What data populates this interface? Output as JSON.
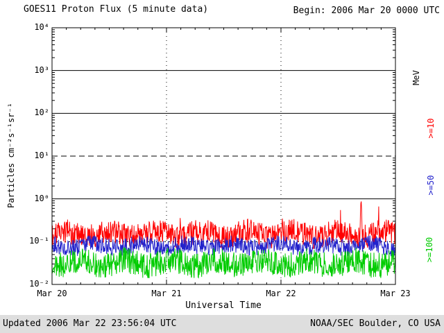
{
  "footer": {
    "updated": "Updated 2006 Mar 22 23:56:04 UTC",
    "credit": "NOAA/SEC Boulder, CO USA"
  },
  "chart_data": {
    "type": "line",
    "title": "GOES11 Proton Flux (5 minute data)",
    "begin_label": "Begin: 2006 Mar 20 0000 UTC",
    "xlabel": "Universal Time",
    "ylabel": "Particles cm⁻²s⁻¹sr⁻¹",
    "right_axis_unit": "MeV",
    "x_tick_labels": [
      "Mar 20",
      "Mar 21",
      "Mar 22",
      "Mar 23"
    ],
    "y_tick_labels": [
      "10⁴",
      "10³",
      "10²",
      "10¹",
      "10⁰",
      "10⁻¹",
      "10⁻²"
    ],
    "y_tick_log10": [
      4,
      3,
      2,
      1,
      0,
      -1,
      -2
    ],
    "ylim_log10": [
      -2,
      4
    ],
    "days": 3,
    "points_per_day": 288,
    "seed": 20060320,
    "grid": {
      "hlines": [
        {
          "log10": 3,
          "style": "solid"
        },
        {
          "log10": 2,
          "style": "solid"
        },
        {
          "log10": 1,
          "style": "dashed"
        },
        {
          "log10": 0,
          "style": "solid"
        },
        {
          "log10": -1,
          "style": "dotted"
        }
      ],
      "vline_days": [
        1,
        2
      ]
    },
    "series": [
      {
        "name": ">=10 MeV proton flux",
        "label": ">=10",
        "color": "#ff0000",
        "approx_mean_flux": 0.15,
        "base_log10": -0.82,
        "noise_log10": 0.28,
        "wobble_log10": 0.07,
        "spike_prob": 0.015,
        "spike_log10": 0.4,
        "big_spike": {
          "t": 0.9,
          "peak_log10": -0.05
        }
      },
      {
        "name": ">=50 MeV proton flux",
        "label": ">=50",
        "color": "#2222cc",
        "approx_mean_flux": 0.08,
        "base_log10": -1.1,
        "noise_log10": 0.2,
        "wobble_log10": 0.05,
        "spike_prob": 0,
        "spike_log10": 0
      },
      {
        "name": ">=100 MeV proton flux",
        "label": ">=100",
        "color": "#00cc00",
        "approx_mean_flux": 0.035,
        "base_log10": -1.5,
        "noise_log10": 0.3,
        "wobble_log10": 0.06,
        "spike_prob": 0,
        "spike_log10": 0
      }
    ]
  }
}
